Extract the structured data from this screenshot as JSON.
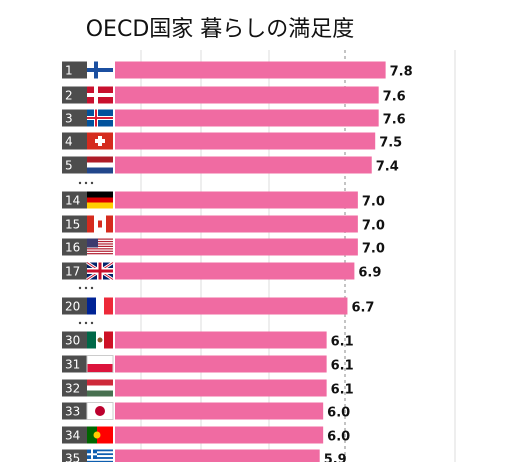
{
  "chart_data": {
    "type": "bar",
    "orientation": "horizontal",
    "title": "OECD国家 暮らしの満足度",
    "categories": [
      "1",
      "2",
      "3",
      "4",
      "5",
      "14",
      "15",
      "16",
      "17",
      "20",
      "30",
      "31",
      "32",
      "33",
      "34",
      "35"
    ],
    "values": [
      7.8,
      7.6,
      7.6,
      7.5,
      7.4,
      7.0,
      7.0,
      7.0,
      6.9,
      6.7,
      6.1,
      6.1,
      6.1,
      6.0,
      6.0,
      5.9
    ],
    "value_labels": [
      "7.8",
      "7.6",
      "7.6",
      "7.5",
      "7.4",
      "7.0",
      "7.0",
      "7.0",
      "6.9",
      "6.7",
      "6.1",
      "6.1",
      "6.1",
      "6.0",
      "6.0",
      "5.9"
    ],
    "color": "#f06ba2",
    "xlim": [
      0,
      9.8
    ]
  }
}
